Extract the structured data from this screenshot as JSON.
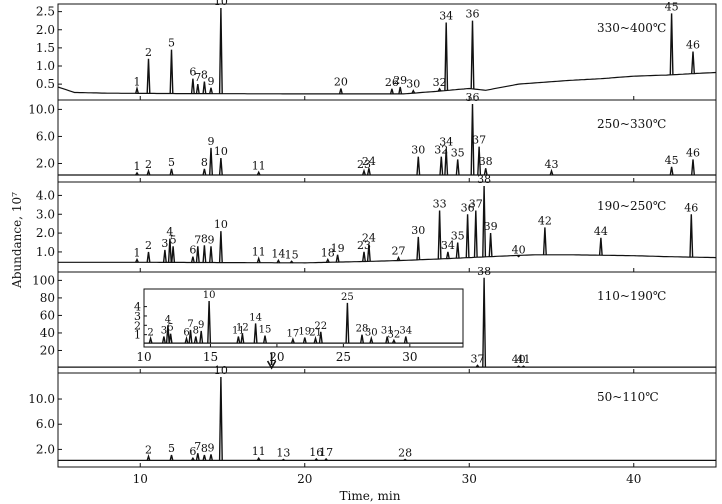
{
  "chart_data": {
    "type": "line",
    "xlabel": "Time, min",
    "ylabel": "Abundance, 10⁷",
    "xlim": [
      5,
      45
    ],
    "x_ticks": [
      10,
      20,
      30,
      40
    ],
    "line_color": "#111111",
    "panels": [
      {
        "name": "330~400℃",
        "ylim": [
          0.2,
          2.6
        ],
        "y_ticks": [
          0.5,
          1.0,
          1.5,
          2.0,
          2.5
        ],
        "y_tick_labels": [
          "0.5",
          "1.0",
          "1.5",
          "2.0",
          "2.5"
        ],
        "baseline": [
          [
            5,
            0.42
          ],
          [
            6,
            0.27
          ],
          [
            8,
            0.25
          ],
          [
            12,
            0.24
          ],
          [
            20,
            0.23
          ],
          [
            26,
            0.23
          ],
          [
            28,
            0.3
          ],
          [
            30,
            0.38
          ],
          [
            31,
            0.33
          ],
          [
            33,
            0.5
          ],
          [
            36,
            0.6
          ],
          [
            38,
            0.65
          ],
          [
            40,
            0.72
          ],
          [
            42,
            0.75
          ],
          [
            44,
            0.8
          ],
          [
            45,
            0.82
          ]
        ],
        "peaks": [
          {
            "label": "1",
            "x": 9.8,
            "y": 0.38
          },
          {
            "label": "2",
            "x": 10.5,
            "y": 1.2
          },
          {
            "label": "5",
            "x": 11.9,
            "y": 1.45
          },
          {
            "label": "6",
            "x": 13.2,
            "y": 0.65
          },
          {
            "label": "7",
            "x": 13.5,
            "y": 0.5
          },
          {
            "label": "8",
            "x": 13.9,
            "y": 0.57
          },
          {
            "label": "9",
            "x": 14.3,
            "y": 0.4
          },
          {
            "label": "10",
            "x": 14.9,
            "y": 2.6
          },
          {
            "label": "20",
            "x": 22.2,
            "y": 0.38
          },
          {
            "label": "26",
            "x": 25.3,
            "y": 0.37
          },
          {
            "label": "29",
            "x": 25.8,
            "y": 0.42
          },
          {
            "label": "30",
            "x": 26.6,
            "y": 0.32
          },
          {
            "label": "32",
            "x": 28.2,
            "y": 0.37
          },
          {
            "label": "34",
            "x": 28.6,
            "y": 2.2
          },
          {
            "label": "36",
            "x": 30.2,
            "y": 2.25
          },
          {
            "label": "45",
            "x": 42.3,
            "y": 2.45
          },
          {
            "label": "46",
            "x": 43.6,
            "y": 1.4
          }
        ]
      },
      {
        "name": "250~330℃",
        "ylim": [
          0,
          10.8
        ],
        "y_ticks": [
          2.0,
          6.0,
          10.0
        ],
        "y_tick_labels": [
          "2.0",
          "6.0",
          "10.0"
        ],
        "baseline": [
          [
            5,
            0.3
          ],
          [
            45,
            0.3
          ]
        ],
        "peaks": [
          {
            "label": "1",
            "x": 9.8,
            "y": 0.6
          },
          {
            "label": "2",
            "x": 10.5,
            "y": 0.9
          },
          {
            "label": "5",
            "x": 11.9,
            "y": 1.2
          },
          {
            "label": "8",
            "x": 13.9,
            "y": 1.2
          },
          {
            "label": "9",
            "x": 14.3,
            "y": 4.3
          },
          {
            "label": "10",
            "x": 14.9,
            "y": 2.8
          },
          {
            "label": "11",
            "x": 17.2,
            "y": 0.7
          },
          {
            "label": "23",
            "x": 23.6,
            "y": 0.9
          },
          {
            "label": "24",
            "x": 23.9,
            "y": 1.3
          },
          {
            "label": "30",
            "x": 26.9,
            "y": 3.0
          },
          {
            "label": "32",
            "x": 28.3,
            "y": 3.0
          },
          {
            "label": "34",
            "x": 28.6,
            "y": 4.2
          },
          {
            "label": "35",
            "x": 29.3,
            "y": 2.6
          },
          {
            "label": "36",
            "x": 30.2,
            "y": 10.8
          },
          {
            "label": "37",
            "x": 30.6,
            "y": 4.5
          },
          {
            "label": "38",
            "x": 31.0,
            "y": 1.3
          },
          {
            "label": "43",
            "x": 35.0,
            "y": 0.9
          },
          {
            "label": "45",
            "x": 42.3,
            "y": 1.5
          },
          {
            "label": "46",
            "x": 43.6,
            "y": 2.6
          }
        ]
      },
      {
        "name": "190~250℃",
        "ylim": [
          0.2,
          4.5
        ],
        "y_ticks": [
          1.0,
          2.0,
          3.0,
          4.0
        ],
        "y_tick_labels": [
          "1.0",
          "2.0",
          "3.0",
          "4.0"
        ],
        "baseline": [
          [
            5,
            0.45
          ],
          [
            10,
            0.45
          ],
          [
            20,
            0.42
          ],
          [
            24,
            0.5
          ],
          [
            26,
            0.55
          ],
          [
            28,
            0.62
          ],
          [
            30,
            0.7
          ],
          [
            32,
            0.78
          ],
          [
            34,
            0.85
          ],
          [
            36,
            0.85
          ],
          [
            40,
            0.8
          ],
          [
            42,
            0.75
          ],
          [
            45,
            0.7
          ]
        ],
        "peaks": [
          {
            "label": "1",
            "x": 9.8,
            "y": 0.6
          },
          {
            "label": "2",
            "x": 10.5,
            "y": 1.0
          },
          {
            "label": "3",
            "x": 11.5,
            "y": 1.1
          },
          {
            "label": "4",
            "x": 11.8,
            "y": 1.7
          },
          {
            "label": "5",
            "x": 12.0,
            "y": 1.3
          },
          {
            "label": "6",
            "x": 13.2,
            "y": 0.75
          },
          {
            "label": "7",
            "x": 13.5,
            "y": 1.3
          },
          {
            "label": "8",
            "x": 13.9,
            "y": 1.35
          },
          {
            "label": "9",
            "x": 14.3,
            "y": 1.3
          },
          {
            "label": "10",
            "x": 14.9,
            "y": 2.1
          },
          {
            "label": "11",
            "x": 17.2,
            "y": 0.65
          },
          {
            "label": "14",
            "x": 18.4,
            "y": 0.55
          },
          {
            "label": "15",
            "x": 19.2,
            "y": 0.5
          },
          {
            "label": "18",
            "x": 21.4,
            "y": 0.6
          },
          {
            "label": "19",
            "x": 22.0,
            "y": 0.85
          },
          {
            "label": "23",
            "x": 23.6,
            "y": 1.0
          },
          {
            "label": "24",
            "x": 23.9,
            "y": 1.4
          },
          {
            "label": "27",
            "x": 25.7,
            "y": 0.7
          },
          {
            "label": "30",
            "x": 26.9,
            "y": 1.8
          },
          {
            "label": "33",
            "x": 28.2,
            "y": 3.2
          },
          {
            "label": "34",
            "x": 28.7,
            "y": 1.0
          },
          {
            "label": "35",
            "x": 29.3,
            "y": 1.5
          },
          {
            "label": "36",
            "x": 29.9,
            "y": 3.0
          },
          {
            "label": "37",
            "x": 30.4,
            "y": 3.2
          },
          {
            "label": "38",
            "x": 30.9,
            "y": 4.5
          },
          {
            "label": "39",
            "x": 31.3,
            "y": 2.0
          },
          {
            "label": "40",
            "x": 33.0,
            "y": 0.75
          },
          {
            "label": "42",
            "x": 34.6,
            "y": 2.3
          },
          {
            "label": "44",
            "x": 38.0,
            "y": 1.75
          },
          {
            "label": "46",
            "x": 43.5,
            "y": 3.0
          }
        ]
      },
      {
        "name": "110~190℃",
        "ylim": [
          0,
          105
        ],
        "y_ticks": [
          20,
          40,
          60,
          80,
          100
        ],
        "y_tick_labels": [
          "20",
          "40",
          "60",
          "80",
          "100"
        ],
        "baseline": [
          [
            5,
            1
          ],
          [
            45,
            1
          ]
        ],
        "peaks": [
          {
            "label": "37",
            "x": 30.5,
            "y": 3
          },
          {
            "label": "38",
            "x": 30.9,
            "y": 103
          },
          {
            "label": "40",
            "x": 33.0,
            "y": 2
          },
          {
            "label": "41",
            "x": 33.3,
            "y": 2
          }
        ],
        "inset": {
          "xlim": [
            10,
            34
          ],
          "x_ticks": [
            10,
            15,
            20,
            25,
            30
          ],
          "ylim": [
            0,
            4.6
          ],
          "y_ticks": [
            1,
            2,
            3,
            4
          ],
          "y_tick_labels": [
            "1",
            "2",
            "3",
            "4"
          ],
          "baseline": [
            [
              10,
              0.1
            ],
            [
              34,
              0.1
            ]
          ],
          "peaks": [
            {
              "label": "2",
              "x": 10.5,
              "y": 0.6
            },
            {
              "label": "3",
              "x": 11.5,
              "y": 0.8
            },
            {
              "label": "4",
              "x": 11.8,
              "y": 2.0
            },
            {
              "label": "5",
              "x": 12.0,
              "y": 1.1
            },
            {
              "label": "6",
              "x": 13.2,
              "y": 0.6
            },
            {
              "label": "7",
              "x": 13.5,
              "y": 1.5
            },
            {
              "label": "8",
              "x": 13.9,
              "y": 0.8
            },
            {
              "label": "9",
              "x": 14.3,
              "y": 1.4
            },
            {
              "label": "10",
              "x": 14.9,
              "y": 4.6
            },
            {
              "label": "11",
              "x": 17.1,
              "y": 0.8
            },
            {
              "label": "12",
              "x": 17.4,
              "y": 1.1
            },
            {
              "label": "14",
              "x": 18.4,
              "y": 2.2
            },
            {
              "label": "15",
              "x": 19.1,
              "y": 0.9
            },
            {
              "label": "17",
              "x": 21.2,
              "y": 0.5
            },
            {
              "label": "19",
              "x": 22.1,
              "y": 0.7
            },
            {
              "label": "21",
              "x": 22.9,
              "y": 0.6
            },
            {
              "label": "22",
              "x": 23.3,
              "y": 1.3
            },
            {
              "label": "25",
              "x": 25.3,
              "y": 4.4
            },
            {
              "label": "28",
              "x": 26.4,
              "y": 1.0
            },
            {
              "label": "30",
              "x": 27.1,
              "y": 0.6
            },
            {
              "label": "31",
              "x": 28.3,
              "y": 0.8
            },
            {
              "label": "32",
              "x": 28.8,
              "y": 0.4
            },
            {
              "label": "34",
              "x": 29.7,
              "y": 0.8
            }
          ]
        }
      },
      {
        "name": "50~110℃",
        "ylim": [
          0,
          13.5
        ],
        "y_ticks": [
          2.0,
          6.0,
          10.0
        ],
        "y_tick_labels": [
          "2.0",
          "6.0",
          "10.0"
        ],
        "baseline": [
          [
            5,
            0.25
          ],
          [
            45,
            0.25
          ]
        ],
        "peaks": [
          {
            "label": "2",
            "x": 10.5,
            "y": 0.9
          },
          {
            "label": "5",
            "x": 11.9,
            "y": 1.1
          },
          {
            "label": "6",
            "x": 13.2,
            "y": 0.6
          },
          {
            "label": "7",
            "x": 13.5,
            "y": 1.4
          },
          {
            "label": "8",
            "x": 13.9,
            "y": 1.1
          },
          {
            "label": "9",
            "x": 14.3,
            "y": 1.2
          },
          {
            "label": "10",
            "x": 14.9,
            "y": 13.5
          },
          {
            "label": "11",
            "x": 17.2,
            "y": 0.6
          },
          {
            "label": "13",
            "x": 18.7,
            "y": 0.4
          },
          {
            "label": "16",
            "x": 20.7,
            "y": 0.5
          },
          {
            "label": "17",
            "x": 21.3,
            "y": 0.5
          },
          {
            "label": "28",
            "x": 26.1,
            "y": 0.4
          }
        ]
      }
    ]
  }
}
